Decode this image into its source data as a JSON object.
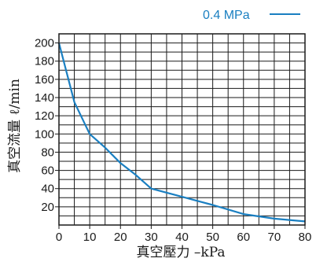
{
  "chart_data": {
    "type": "line",
    "xlabel": "真空壓力 –kPa",
    "ylabel": "真空流量 ℓ/min",
    "xlim": [
      0,
      80
    ],
    "ylim": [
      0,
      210
    ],
    "x_ticks": [
      0,
      10,
      20,
      30,
      40,
      50,
      60,
      70,
      80
    ],
    "y_ticks": [
      20,
      40,
      60,
      80,
      100,
      120,
      140,
      160,
      180,
      200
    ],
    "grid": true,
    "legend": "top-right",
    "series": [
      {
        "name": "0.4 MPa",
        "color": "#1a7fc1",
        "x": [
          0,
          5,
          10,
          15,
          20,
          25,
          30,
          40,
          50,
          60,
          70,
          80
        ],
        "y": [
          200,
          135,
          100,
          85,
          68,
          55,
          40,
          31,
          22,
          12,
          7,
          4
        ]
      }
    ]
  }
}
